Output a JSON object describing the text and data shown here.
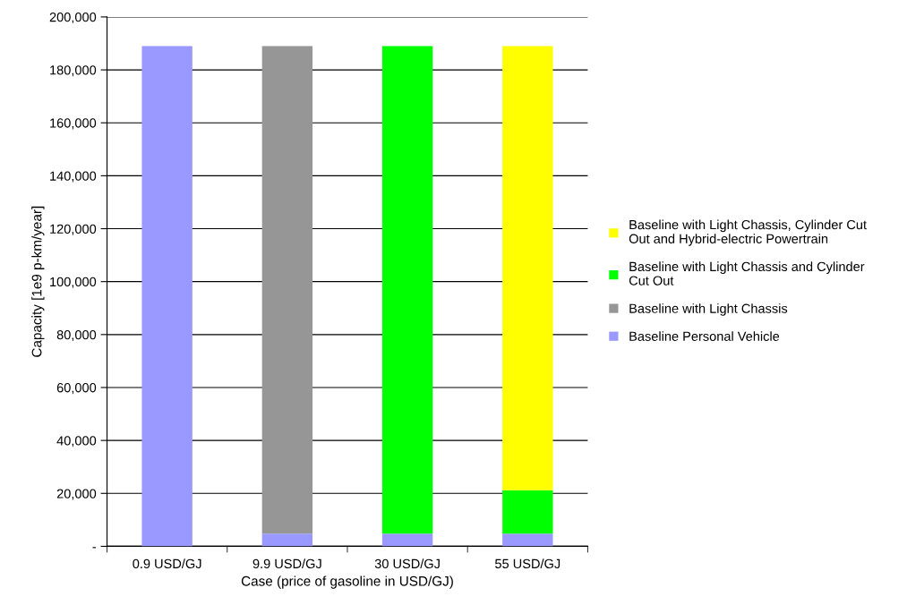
{
  "chart_data": {
    "type": "bar",
    "stacked": true,
    "xlabel": "Case (price of gasoline in USD/GJ)",
    "ylabel": "Capacity [1e9 p-km/year]",
    "categories": [
      "0.9 USD/GJ",
      "9.9 USD/GJ",
      "30 USD/GJ",
      "55 USD/GJ"
    ],
    "series": [
      {
        "name": "Baseline Personal Vehicle",
        "color": "#9999ff",
        "values": [
          189000,
          4800,
          4800,
          4800
        ]
      },
      {
        "name": "Baseline with Light Chassis",
        "color": "#969696",
        "values": [
          0,
          184200,
          0,
          0
        ]
      },
      {
        "name": "Baseline with Light Chassis and Cylinder Cut Out",
        "color": "#00ff00",
        "values": [
          0,
          0,
          184200,
          16400
        ]
      },
      {
        "name": "Baseline with Light Chassis, Cylinder Cut Out and Hybrid-electric Powertrain",
        "color": "#ffff00",
        "values": [
          0,
          0,
          0,
          167800
        ]
      }
    ],
    "ylim": [
      0,
      200000
    ],
    "yticks": [
      {
        "value": 0,
        "label": "-"
      },
      {
        "value": 20000,
        "label": "20,000"
      },
      {
        "value": 40000,
        "label": "40,000"
      },
      {
        "value": 60000,
        "label": "60,000"
      },
      {
        "value": 80000,
        "label": "80,000"
      },
      {
        "value": 100000,
        "label": "100,000"
      },
      {
        "value": 120000,
        "label": "120,000"
      },
      {
        "value": 140000,
        "label": "140,000"
      },
      {
        "value": 160000,
        "label": "160,000"
      },
      {
        "value": 180000,
        "label": "180,000"
      },
      {
        "value": 200000,
        "label": "200,000"
      }
    ],
    "grid": "y",
    "legend": "right"
  }
}
